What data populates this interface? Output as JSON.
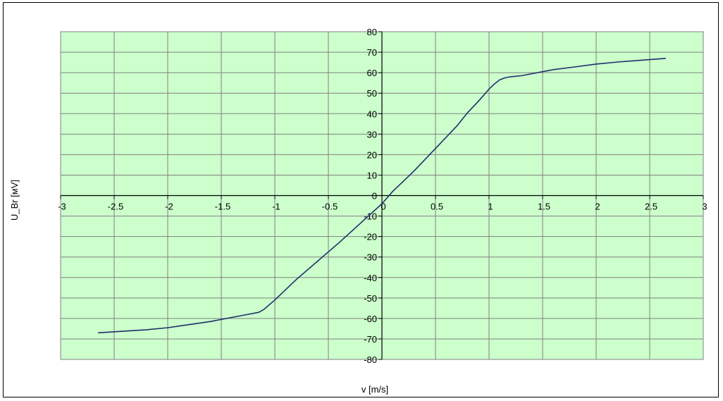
{
  "chart_data": {
    "type": "line",
    "title": "",
    "xlabel": "v [m/s]",
    "ylabel": "U_Br [мV]",
    "xlim": [
      -3,
      3
    ],
    "ylim": [
      -80,
      80
    ],
    "x_ticks": [
      -3,
      -2.5,
      -2,
      -1.5,
      -1,
      -0.5,
      0,
      0.5,
      1,
      1.5,
      2,
      2.5,
      3
    ],
    "y_ticks": [
      80,
      70,
      60,
      50,
      40,
      30,
      20,
      10,
      0,
      -10,
      -20,
      -30,
      -40,
      -50,
      -60,
      -70,
      -80
    ],
    "grid": true,
    "legend": "none",
    "colors": {
      "plot_background": "#ccffcc",
      "grid": "#808080",
      "line": "#1f2f6b",
      "axis": "#000000"
    },
    "series": [
      {
        "x": [
          -2.65,
          -2.5,
          -2.2,
          -2.0,
          -1.8,
          -1.6,
          -1.4,
          -1.3,
          -1.15,
          -1.1,
          -1.0,
          -0.9,
          -0.8,
          -0.6,
          -0.4,
          -0.2,
          0.0,
          0.1,
          0.3,
          0.5,
          0.7,
          0.8,
          0.9,
          1.0,
          1.05,
          1.1,
          1.15,
          1.2,
          1.3,
          1.4,
          1.6,
          1.8,
          2.0,
          2.2,
          2.4,
          2.65
        ],
        "y": [
          -67,
          -66.5,
          -65.5,
          -64.5,
          -63,
          -61.5,
          -59.5,
          -58.5,
          -57,
          -55.5,
          -51,
          -46,
          -41,
          -32,
          -23,
          -13.5,
          -4,
          2,
          12,
          23,
          34,
          40.5,
          46,
          52,
          54.5,
          56.5,
          57.5,
          58,
          58.5,
          59.5,
          61.5,
          62.8,
          64.2,
          65.2,
          66,
          67
        ]
      }
    ]
  }
}
